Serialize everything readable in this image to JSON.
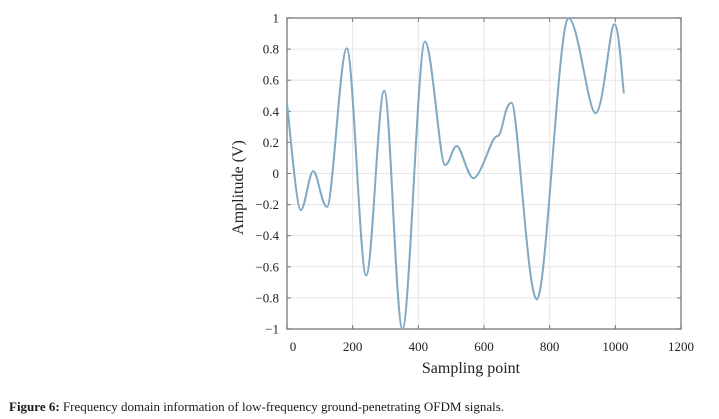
{
  "chart_data": {
    "type": "line",
    "title": "",
    "xlabel": "Sampling point",
    "ylabel": "Amplitude  (V)",
    "xlim": [
      0,
      1200
    ],
    "ylim": [
      -1,
      1
    ],
    "xticks": [
      0,
      200,
      400,
      600,
      800,
      1000,
      1200
    ],
    "xtick_labels": [
      "0",
      "200",
      "400",
      "600",
      "800",
      "1000",
      "1200"
    ],
    "yticks": [
      1,
      0.8,
      0.6,
      0.4,
      0.2,
      0,
      -0.2,
      -0.4,
      -0.6,
      -0.8,
      -1
    ],
    "ytick_labels": [
      "1",
      "0.8",
      "0.6",
      "0.4",
      "0.2",
      "0",
      "−0.2",
      "−0.4",
      "−0.6",
      "−0.8",
      "−1"
    ],
    "grid": true,
    "legend": "none",
    "series": [
      {
        "name": "signal",
        "color": "#7fa9c4",
        "x": [
          0,
          42,
          80,
          122,
          182,
          241,
          296,
          352,
          420,
          481,
          517,
          568,
          628,
          649,
          684,
          761,
          857,
          940,
          997,
          1026
        ],
        "y": [
          0.45,
          -0.235,
          0.015,
          -0.215,
          0.805,
          -0.655,
          0.532,
          -1.0,
          0.848,
          0.055,
          0.177,
          -0.03,
          0.215,
          0.26,
          0.455,
          -0.81,
          1.0,
          0.387,
          0.96,
          0.515
        ]
      }
    ]
  },
  "caption": {
    "label": "Figure 6:",
    "text": " Frequency domain information of low-frequency ground-penetrating OFDM signals."
  }
}
